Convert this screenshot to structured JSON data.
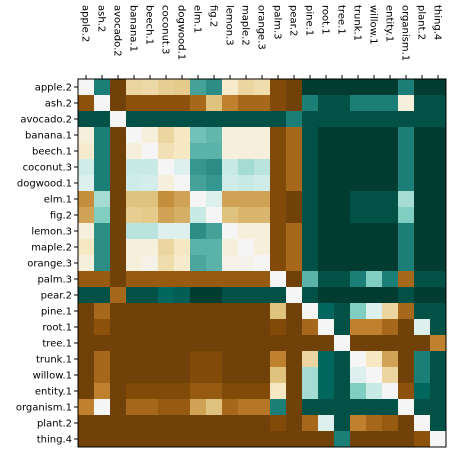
{
  "chart_data": {
    "type": "heatmap",
    "title": "",
    "xlabel": "",
    "ylabel": "",
    "x_labels": [
      "apple.2",
      "ash.2",
      "avocado.2",
      "banana.1",
      "beech.1",
      "coconut.3",
      "dogwood.1",
      "elm.1",
      "fig.2",
      "lemon.3",
      "maple.2",
      "orange.3",
      "palm.3",
      "pear.2",
      "pine.1",
      "root.1",
      "tree.1",
      "trunk.1",
      "willow.1",
      "entity.1",
      "organism.1",
      "plant.2",
      "thing.4"
    ],
    "y_labels": [
      "apple.2",
      "ash.2",
      "avocado.2",
      "banana.1",
      "beech.1",
      "coconut.3",
      "dogwood.1",
      "elm.1",
      "fig.2",
      "lemon.3",
      "maple.2",
      "orange.3",
      "palm.3",
      "pear.2",
      "pine.1",
      "root.1",
      "tree.1",
      "trunk.1",
      "willow.1",
      "entity.1",
      "organism.1",
      "plant.2",
      "thing.4"
    ],
    "x_axis_position": "top",
    "colormap": "BrBG",
    "color_stops": [
      "#543005",
      "#8c510a",
      "#bf812d",
      "#dfc27d",
      "#f6e8c3",
      "#f5f5f5",
      "#c7eae5",
      "#80cdc1",
      "#35978f",
      "#01665e",
      "#003c30"
    ],
    "value_range": [
      0,
      1
    ],
    "values": [
      [
        0.5,
        0.85,
        0.05,
        0.35,
        0.36,
        0.33,
        0.32,
        0.78,
        0.82,
        0.42,
        0.35,
        0.37,
        0.08,
        0.05,
        1,
        1,
        1,
        1,
        1,
        1,
        0.85,
        1,
        1
      ],
      [
        0.1,
        0.5,
        0.05,
        0.1,
        0.1,
        0.1,
        0.1,
        0.15,
        0.3,
        0.2,
        0.15,
        0.15,
        0.08,
        0.05,
        0.85,
        0.95,
        0.95,
        0.85,
        0.85,
        0.85,
        0.45,
        0.95,
        0.95
      ],
      [
        0.95,
        0.95,
        0.5,
        0.95,
        0.95,
        0.95,
        0.95,
        0.95,
        0.95,
        0.95,
        0.95,
        0.95,
        0.95,
        0.85,
        0.95,
        0.95,
        0.95,
        0.95,
        0.95,
        0.95,
        0.95,
        0.95,
        0.95
      ],
      [
        0.45,
        0.85,
        0.05,
        0.5,
        0.45,
        0.35,
        0.4,
        0.72,
        0.74,
        0.45,
        0.45,
        0.45,
        0.08,
        0.15,
        0.95,
        1,
        1,
        1,
        1,
        1,
        0.85,
        1,
        1
      ],
      [
        0.42,
        0.85,
        0.05,
        0.45,
        0.5,
        0.38,
        0.4,
        0.75,
        0.75,
        0.45,
        0.45,
        0.45,
        0.08,
        0.15,
        0.95,
        1,
        1,
        1,
        1,
        1,
        0.85,
        1,
        1
      ],
      [
        0.58,
        0.85,
        0.05,
        0.6,
        0.6,
        0.5,
        0.55,
        0.8,
        0.82,
        0.6,
        0.65,
        0.62,
        0.08,
        0.15,
        0.95,
        1,
        1,
        1,
        1,
        1,
        0.85,
        1,
        1
      ],
      [
        0.55,
        0.85,
        0.05,
        0.58,
        0.57,
        0.45,
        0.5,
        0.78,
        0.8,
        0.58,
        0.6,
        0.58,
        0.08,
        0.15,
        0.95,
        1,
        1,
        1,
        1,
        1,
        0.85,
        1,
        1
      ],
      [
        0.22,
        0.65,
        0.05,
        0.3,
        0.3,
        0.22,
        0.25,
        0.5,
        0.55,
        0.25,
        0.25,
        0.25,
        0.08,
        0.05,
        0.95,
        1,
        1,
        0.95,
        0.95,
        0.95,
        0.65,
        1,
        1
      ],
      [
        0.25,
        0.7,
        0.05,
        0.33,
        0.32,
        0.25,
        0.27,
        0.6,
        0.5,
        0.3,
        0.28,
        0.28,
        0.08,
        0.05,
        0.95,
        1,
        1,
        0.95,
        0.95,
        0.95,
        0.7,
        1,
        1
      ],
      [
        0.45,
        0.82,
        0.05,
        0.62,
        0.62,
        0.55,
        0.55,
        0.82,
        0.78,
        0.5,
        0.45,
        0.45,
        0.08,
        0.15,
        0.95,
        1,
        1,
        1,
        1,
        1,
        0.85,
        1,
        1
      ],
      [
        0.4,
        0.82,
        0.05,
        0.45,
        0.45,
        0.35,
        0.4,
        0.75,
        0.75,
        0.45,
        0.5,
        0.45,
        0.08,
        0.15,
        0.95,
        1,
        1,
        1,
        1,
        1,
        0.85,
        1,
        1
      ],
      [
        0.45,
        0.82,
        0.05,
        0.45,
        0.47,
        0.37,
        0.42,
        0.77,
        0.75,
        0.47,
        0.48,
        0.5,
        0.08,
        0.15,
        0.95,
        1,
        1,
        1,
        1,
        1,
        0.85,
        1,
        1
      ],
      [
        0.12,
        0.12,
        0.05,
        0.12,
        0.12,
        0.12,
        0.12,
        0.12,
        0.12,
        0.12,
        0.12,
        0.12,
        0.5,
        0.05,
        0.75,
        0.95,
        0.95,
        0.85,
        0.7,
        0.85,
        0.15,
        0.95,
        0.95
      ],
      [
        0.95,
        0.95,
        0.15,
        0.95,
        0.95,
        0.9,
        0.92,
        1,
        1,
        0.95,
        0.95,
        0.95,
        0.95,
        0.5,
        0.95,
        1,
        1,
        1,
        1,
        1,
        0.95,
        1,
        1
      ],
      [
        0.05,
        0.15,
        0.05,
        0.05,
        0.05,
        0.05,
        0.05,
        0.05,
        0.05,
        0.05,
        0.05,
        0.05,
        0.3,
        0.05,
        0.5,
        0.9,
        0.95,
        0.7,
        0.55,
        0.35,
        0.15,
        0.95,
        0.95
      ],
      [
        0.05,
        0.1,
        0.05,
        0.05,
        0.05,
        0.05,
        0.05,
        0.05,
        0.05,
        0.05,
        0.05,
        0.05,
        0.08,
        0.05,
        0.15,
        0.5,
        0.95,
        0.2,
        0.2,
        0.15,
        0.05,
        0.55,
        0.95
      ],
      [
        0.05,
        0.05,
        0.05,
        0.05,
        0.05,
        0.05,
        0.05,
        0.05,
        0.05,
        0.05,
        0.05,
        0.05,
        0.05,
        0.05,
        0.05,
        0.05,
        0.5,
        0.05,
        0.05,
        0.05,
        0.05,
        0.05,
        0.2
      ],
      [
        0.05,
        0.15,
        0.05,
        0.05,
        0.05,
        0.05,
        0.05,
        0.08,
        0.08,
        0.05,
        0.05,
        0.05,
        0.2,
        0.05,
        0.35,
        0.9,
        0.95,
        0.5,
        0.4,
        0.25,
        0.05,
        0.85,
        0.95
      ],
      [
        0.05,
        0.15,
        0.05,
        0.05,
        0.05,
        0.05,
        0.05,
        0.08,
        0.08,
        0.05,
        0.05,
        0.05,
        0.3,
        0.05,
        0.65,
        0.9,
        0.95,
        0.55,
        0.5,
        0.35,
        0.05,
        0.85,
        0.95
      ],
      [
        0.05,
        0.2,
        0.05,
        0.08,
        0.08,
        0.08,
        0.08,
        0.12,
        0.12,
        0.08,
        0.08,
        0.08,
        0.4,
        0.05,
        0.65,
        0.9,
        0.95,
        0.7,
        0.6,
        0.5,
        0.1,
        0.9,
        0.95
      ],
      [
        0.2,
        0.5,
        0.05,
        0.15,
        0.15,
        0.12,
        0.12,
        0.25,
        0.3,
        0.15,
        0.18,
        0.18,
        0.85,
        0.05,
        0.95,
        0.95,
        0.95,
        0.95,
        0.95,
        0.95,
        0.5,
        0.95,
        0.95
      ],
      [
        0.05,
        0.05,
        0.05,
        0.05,
        0.05,
        0.05,
        0.05,
        0.05,
        0.05,
        0.05,
        0.05,
        0.05,
        0.08,
        0.05,
        0.15,
        0.55,
        0.95,
        0.2,
        0.15,
        0.12,
        0.05,
        0.5,
        0.95
      ],
      [
        0.05,
        0.05,
        0.05,
        0.05,
        0.05,
        0.05,
        0.05,
        0.05,
        0.05,
        0.05,
        0.05,
        0.05,
        0.05,
        0.05,
        0.05,
        0.05,
        0.85,
        0.05,
        0.05,
        0.05,
        0.05,
        0.1,
        0.5
      ]
    ]
  }
}
